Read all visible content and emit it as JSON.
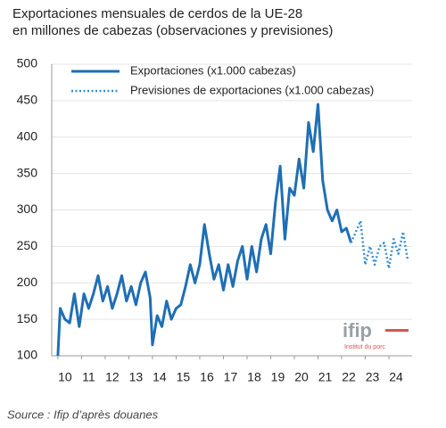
{
  "chart_data": {
    "type": "line",
    "title": "Exportaciones mensuales de cerdos de la UE-28",
    "subtitle": "en millones de cabezas (observaciones y previsiones)",
    "source": "Source : Ifip d’après douanes",
    "logo": {
      "name": "ifip",
      "tagline": "Institut du porc"
    },
    "x": [
      10.0,
      10.1,
      10.3,
      10.5,
      10.7,
      10.9,
      11.1,
      11.3,
      11.5,
      11.7,
      11.9,
      12.1,
      12.3,
      12.5,
      12.7,
      12.9,
      13.1,
      13.3,
      13.5,
      13.7,
      13.9,
      14.0,
      14.2,
      14.4,
      14.6,
      14.8,
      15.0,
      15.2,
      15.4,
      15.6,
      15.8,
      16.0,
      16.2,
      16.4,
      16.6,
      16.8,
      17.0,
      17.2,
      17.4,
      17.6,
      17.8,
      18.0,
      18.2,
      18.4,
      18.6,
      18.8,
      19.0,
      19.2,
      19.4,
      19.6,
      19.8,
      20.0,
      20.2,
      20.4,
      20.6,
      20.8,
      21.0,
      21.2,
      21.4,
      21.6,
      21.8,
      22.0,
      22.2,
      22.4,
      22.6,
      22.8,
      23.0,
      23.2,
      23.4,
      23.6,
      23.8,
      24.0,
      24.2,
      24.4,
      24.6,
      24.8
    ],
    "series": [
      {
        "name": "Exportaciones (x1.000 cabezas)",
        "color": "#1f6fb4",
        "style": "solid",
        "values": [
          100,
          165,
          150,
          145,
          185,
          140,
          185,
          165,
          185,
          210,
          175,
          195,
          165,
          185,
          210,
          175,
          195,
          170,
          200,
          215,
          180,
          115,
          155,
          140,
          175,
          150,
          165,
          170,
          195,
          225,
          200,
          225,
          280,
          240,
          205,
          225,
          190,
          225,
          195,
          230,
          250,
          205,
          250,
          215,
          260,
          280,
          240,
          310,
          360,
          260,
          330,
          320,
          370,
          330,
          420,
          380,
          445,
          340,
          300,
          285,
          300,
          270,
          275,
          255,
          null,
          null,
          null,
          null,
          null,
          null,
          null,
          null,
          null,
          null,
          null,
          null
        ]
      },
      {
        "name": "Previsiones de exportaciones (x1.000 cabezas)",
        "color": "#3a8fd0",
        "style": "dotted",
        "values": [
          null,
          null,
          null,
          null,
          null,
          null,
          null,
          null,
          null,
          null,
          null,
          null,
          null,
          null,
          null,
          null,
          null,
          null,
          null,
          null,
          null,
          null,
          null,
          null,
          null,
          null,
          null,
          null,
          null,
          null,
          null,
          null,
          null,
          null,
          null,
          null,
          null,
          null,
          null,
          null,
          null,
          null,
          null,
          null,
          null,
          null,
          null,
          null,
          null,
          null,
          null,
          null,
          null,
          null,
          null,
          null,
          null,
          null,
          null,
          null,
          null,
          null,
          null,
          255,
          270,
          285,
          225,
          250,
          225,
          250,
          255,
          220,
          260,
          240,
          270,
          230
        ]
      }
    ],
    "xlim": [
      9.74,
      24.98
    ],
    "xticks": [
      10,
      11,
      12,
      13,
      14,
      15,
      16,
      17,
      18,
      19,
      20,
      21,
      22,
      23,
      24
    ],
    "ylim": [
      100,
      500
    ],
    "yticks": [
      100,
      150,
      200,
      250,
      300,
      350,
      400,
      450,
      500
    ],
    "grid": true,
    "legend": "top-left"
  }
}
